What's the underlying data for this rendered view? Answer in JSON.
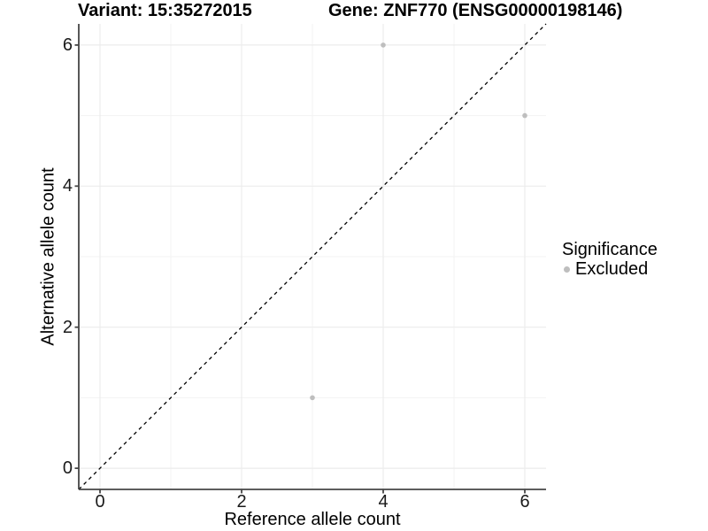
{
  "title": {
    "variant": "Variant: 15:35272015",
    "gene": "Gene: ZNF770 (ENSG00000198146)"
  },
  "axes": {
    "x": {
      "label": "Reference allele count",
      "ticks": [
        0,
        2,
        4,
        6
      ],
      "minor_ticks": [
        1,
        3,
        5
      ],
      "range": [
        -0.3,
        6.3
      ]
    },
    "y": {
      "label": "Alternative allele count",
      "ticks": [
        0,
        2,
        4,
        6
      ],
      "minor_ticks": [
        1,
        3,
        5
      ],
      "range": [
        -0.3,
        6.3
      ]
    }
  },
  "legend": {
    "title": "Significance",
    "items": [
      {
        "label": "Excluded",
        "color": "#bebebe"
      }
    ]
  },
  "chart_data": {
    "type": "scatter",
    "title": "Variant: 15:35272015    Gene: ZNF770 (ENSG00000198146)",
    "xlabel": "Reference allele count",
    "ylabel": "Alternative allele count",
    "xlim": [
      -0.3,
      6.3
    ],
    "ylim": [
      -0.3,
      6.3
    ],
    "grid": "on",
    "legend_position": "right",
    "series": [
      {
        "name": "Excluded",
        "color": "#bebebe",
        "points": [
          [
            3,
            1
          ],
          [
            4,
            6
          ],
          [
            6,
            5
          ]
        ]
      }
    ],
    "reference_line": {
      "slope": 1,
      "intercept": 0,
      "style": "dashed",
      "color": "#000000"
    }
  },
  "colors": {
    "background": "#ffffff",
    "grid_major": "#ececec",
    "grid_minor": "#f3f3f3",
    "axis_line": "#464646",
    "tick": "#464646",
    "point": "#bebebe",
    "dashed_line": "#000000",
    "text": "#000000"
  }
}
